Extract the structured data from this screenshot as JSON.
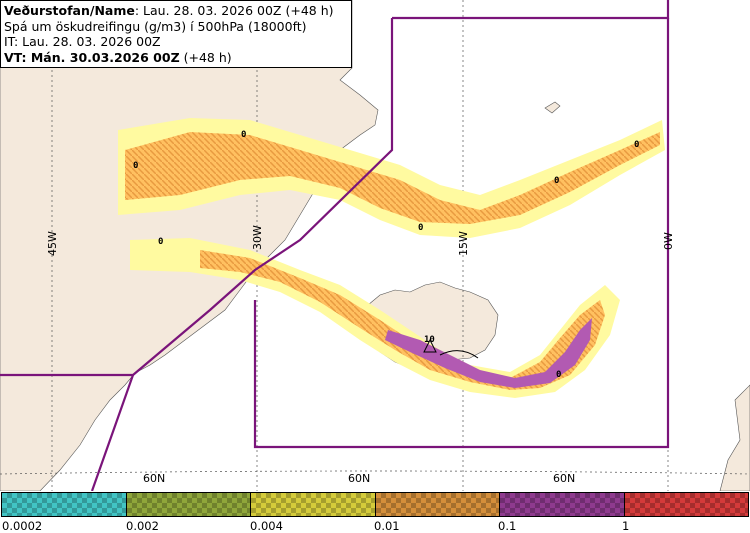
{
  "header": {
    "line1_label": "Veðurstofan/Name",
    "line1_value": ": Lau. 28. 03. 2026 00Z (+48 h)",
    "line2": "Spá um öskudreifingu (g/m3) í 500hPa (18000ft)",
    "line3": "IT: Lau. 28. 03. 2026 00Z",
    "line4_label": "VT: Mán. 30.03.2026 00Z",
    "line4_value": " (+48 h)"
  },
  "map": {
    "meridian_labels": [
      "45W",
      "30W",
      "15W",
      "0W"
    ],
    "latitude_labels": [
      "60N",
      "60N",
      "60N"
    ],
    "contour_labels": [
      "0",
      "0",
      "0",
      "0",
      "0",
      "0",
      "10",
      "0"
    ],
    "colors": {
      "land": "#f4e9dc",
      "sea": "#ffffff",
      "fir_boundary": "#7a147a",
      "plume_outer": "#fffaa0",
      "plume_mid": "#ffc060",
      "plume_core": "#b25ab2"
    }
  },
  "legend": {
    "colors": [
      "#41c4c4",
      "#8fa63a",
      "#d4cb3a",
      "#d48e3a",
      "#8e3a8e",
      "#d43a3a"
    ],
    "tick_labels": [
      "0.0002",
      "0.002",
      "0.004",
      "0.01",
      "0.1",
      "1"
    ]
  }
}
